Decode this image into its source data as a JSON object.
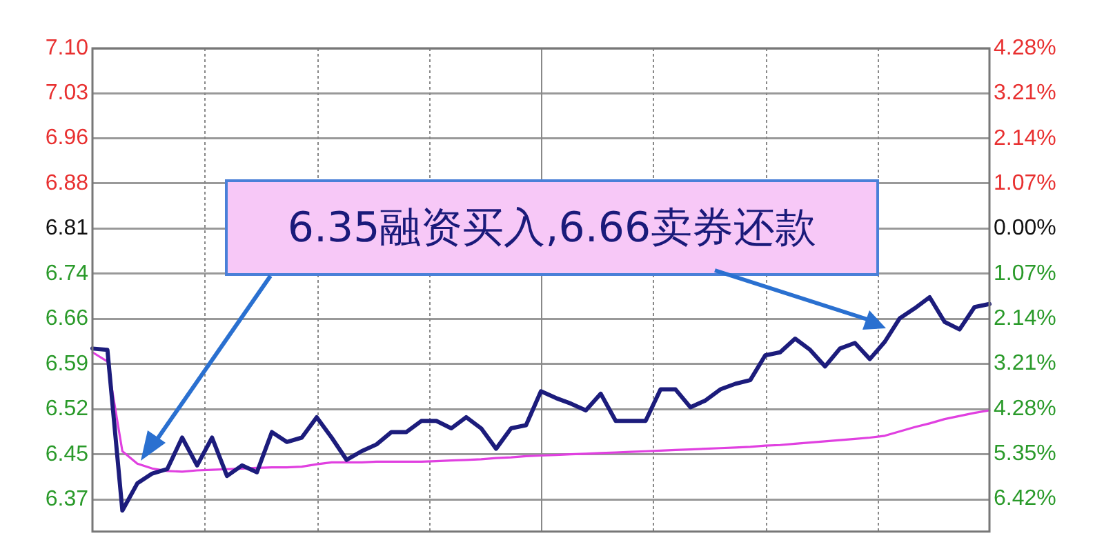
{
  "chart_data": {
    "type": "line",
    "annotations": [
      "6.35融资买入,6.66卖券还款"
    ],
    "categories": [
      null,
      null,
      null,
      null,
      null,
      null,
      null,
      null,
      null,
      null,
      null,
      null,
      null,
      null,
      null,
      null,
      null,
      null,
      null,
      null,
      null,
      null,
      null,
      null,
      null,
      null,
      null,
      null,
      null,
      null,
      null,
      null,
      null,
      null,
      null,
      null,
      null,
      null,
      null,
      null,
      null,
      null,
      null,
      null,
      null,
      null,
      null,
      null,
      null,
      null,
      null,
      null,
      null,
      null,
      null,
      null,
      null,
      null,
      null,
      null,
      null
    ],
    "ylim": [
      6.32,
      7.1015
    ],
    "yticks": [
      {
        "value": 6.372,
        "label": "6.37"
      },
      {
        "value": 6.445,
        "label": "6.45"
      },
      {
        "value": 6.518,
        "label": "6.52"
      },
      {
        "value": 6.591,
        "label": "6.59"
      },
      {
        "value": 6.664,
        "label": "6.66"
      },
      {
        "value": 6.737,
        "label": "6.74"
      },
      {
        "value": 6.81,
        "label": "6.81"
      },
      {
        "value": 6.883,
        "label": "6.88"
      },
      {
        "value": 6.956,
        "label": "6.96"
      },
      {
        "value": 7.029,
        "label": "7.03"
      },
      {
        "value": 7.1015,
        "label": "7.10"
      }
    ],
    "y2lim": [
      -7.195,
      4.28
    ],
    "y2ticks": [
      {
        "value": -6.42,
        "label": "6.42%"
      },
      {
        "value": -5.35,
        "label": "5.35%"
      },
      {
        "value": -4.28,
        "label": "4.28%"
      },
      {
        "value": -3.21,
        "label": "3.21%"
      },
      {
        "value": -2.14,
        "label": "2.14%"
      },
      {
        "value": -1.07,
        "label": "1.07%"
      },
      {
        "value": 0,
        "label": "0.00%"
      },
      {
        "value": 1.07,
        "label": "1.07%"
      },
      {
        "value": 2.14,
        "label": "2.14%"
      },
      {
        "value": 3.21,
        "label": "3.21%"
      },
      {
        "value": 4.28,
        "label": "4.28%"
      }
    ],
    "grid": true,
    "legend": false,
    "tick_labels": "y",
    "marker": "none",
    "line_style": "solid",
    "series": [
      {
        "color": "#1c1c7c",
        "values": [
          6.616,
          6.614,
          6.354,
          6.398,
          6.414,
          6.421,
          6.472,
          6.427,
          6.472,
          6.41,
          6.427,
          6.416,
          6.481,
          6.465,
          6.472,
          6.505,
          6.472,
          6.436,
          6.45,
          6.461,
          6.481,
          6.481,
          6.499,
          6.499,
          6.487,
          6.505,
          6.487,
          6.454,
          6.487,
          6.492,
          6.547,
          6.536,
          6.527,
          6.516,
          6.543,
          6.499,
          6.499,
          6.499,
          6.55,
          6.55,
          6.521,
          6.532,
          6.55,
          6.559,
          6.565,
          6.605,
          6.61,
          6.632,
          6.614,
          6.587,
          6.616,
          6.625,
          6.599,
          6.627,
          6.665,
          6.681,
          6.699,
          6.659,
          6.647,
          6.683,
          6.688
        ]
      },
      {
        "color": "#e040e0",
        "values": [
          6.61,
          6.595,
          6.45,
          6.43,
          6.422,
          6.418,
          6.417,
          6.419,
          6.42,
          6.421,
          6.422,
          6.423,
          6.424,
          6.424,
          6.425,
          6.429,
          6.432,
          6.432,
          6.432,
          6.433,
          6.433,
          6.433,
          6.433,
          6.434,
          6.435,
          6.436,
          6.437,
          6.439,
          6.44,
          6.442,
          6.443,
          6.444,
          6.445,
          6.446,
          6.447,
          6.448,
          6.449,
          6.45,
          6.451,
          6.452,
          6.453,
          6.454,
          6.455,
          6.456,
          6.457,
          6.459,
          6.46,
          6.462,
          6.464,
          6.466,
          6.468,
          6.47,
          6.472,
          6.475,
          6.482,
          6.489,
          6.495,
          6.502,
          6.507,
          6.512,
          6.516
        ]
      }
    ]
  }
}
